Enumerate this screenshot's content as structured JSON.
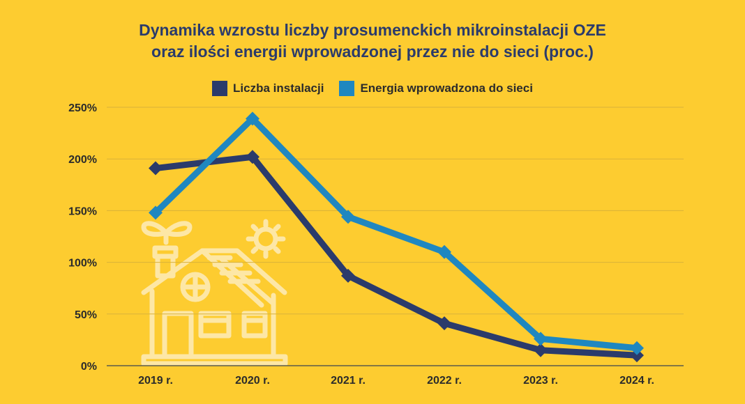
{
  "chart_data": {
    "type": "line",
    "title_lines": [
      "Dynamika wzrostu liczby prosumenckich mikroinstalacji OZE",
      "oraz ilości energii wprowadzonej przez nie do sieci (proc.)"
    ],
    "categories": [
      "2019 r.",
      "2020 r.",
      "2021 r.",
      "2022 r.",
      "2023 r.",
      "2024 r."
    ],
    "series": [
      {
        "name": "Liczba instalacji",
        "color": "#2b3b6b",
        "values": [
          191,
          202,
          87,
          41,
          15,
          10
        ]
      },
      {
        "name": "Energia wprowadzona do sieci",
        "color": "#1f87c0",
        "values": [
          148,
          239,
          144,
          110,
          26,
          17
        ]
      }
    ],
    "yticks": [
      "0%",
      "50%",
      "100%",
      "150%",
      "200%",
      "250%"
    ],
    "ylim": [
      0,
      250
    ],
    "grid": true,
    "legend_position": "top-center",
    "decoration_icon": "house-with-solar-panel-icon"
  }
}
